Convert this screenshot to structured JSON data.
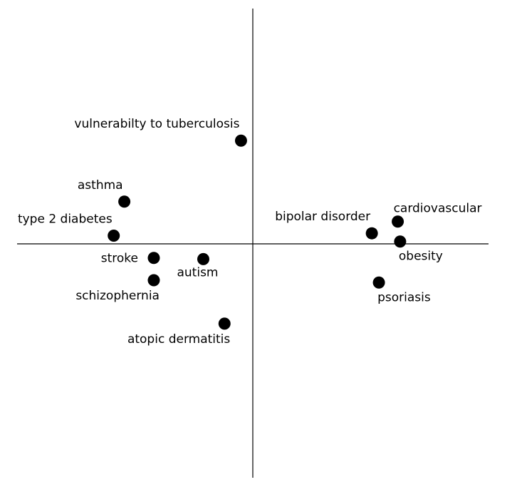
{
  "chart_data": {
    "type": "scatter",
    "title": "",
    "xlabel": "",
    "ylabel": "",
    "xlim": [
      -1,
      1
    ],
    "ylim": [
      -1,
      1
    ],
    "grid": false,
    "legend": "none",
    "point_color": "#000000",
    "points": [
      {
        "label": "vulnerabilty to tuberculosis",
        "x": -0.05,
        "y": 0.44,
        "label_pos": "above-left"
      },
      {
        "label": "asthma",
        "x": -0.545,
        "y": 0.18,
        "label_pos": "above-left"
      },
      {
        "label": "type 2 diabetes",
        "x": -0.59,
        "y": 0.035,
        "label_pos": "above-left"
      },
      {
        "label": "stroke",
        "x": -0.42,
        "y": -0.06,
        "label_pos": "left"
      },
      {
        "label": "autism",
        "x": -0.21,
        "y": -0.065,
        "label_pos": "below"
      },
      {
        "label": "schizophernia",
        "x": -0.42,
        "y": -0.155,
        "label_pos": "below-left"
      },
      {
        "label": "atopic dermatitis",
        "x": -0.12,
        "y": -0.34,
        "label_pos": "below-left"
      },
      {
        "label": "bipolar disorder",
        "x": 0.505,
        "y": 0.045,
        "label_pos": "above-left"
      },
      {
        "label": "cardiovascular",
        "x": 0.615,
        "y": 0.095,
        "label_pos": "above-right"
      },
      {
        "label": "obesity",
        "x": 0.625,
        "y": 0.01,
        "label_pos": "below-right"
      },
      {
        "label": "psoriasis",
        "x": 0.535,
        "y": -0.165,
        "label_pos": "below-right"
      }
    ]
  }
}
